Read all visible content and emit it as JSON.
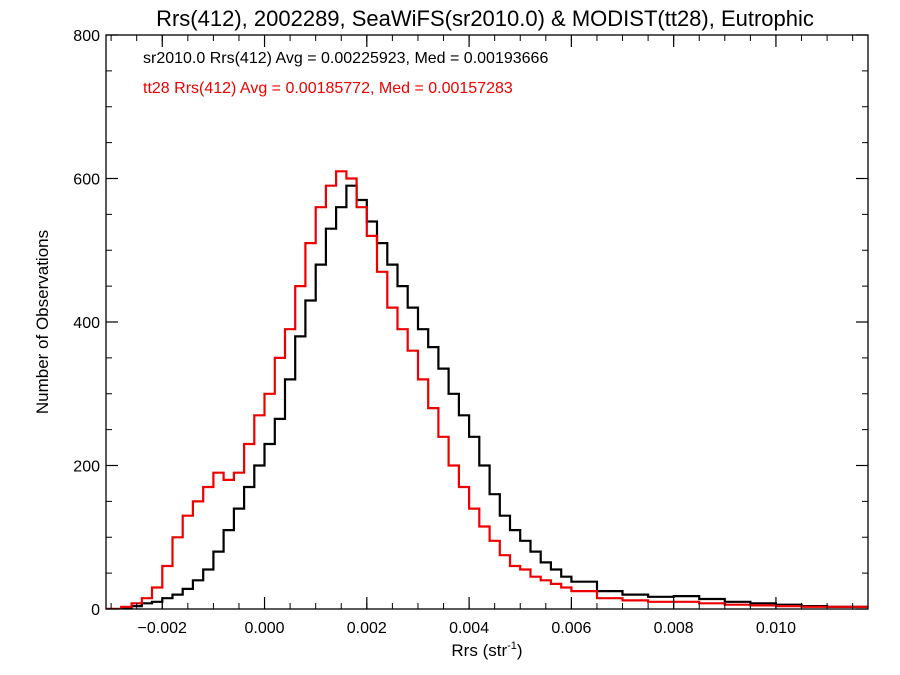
{
  "chart_data": {
    "type": "line",
    "step": true,
    "title": "Rrs(412), 2002289, SeaWiFS(sr2010.0) & MODIST(tt28), Eutrophic",
    "xlabel_main": "Rrs (str",
    "xlabel_sup": "-1",
    "xlabel_end": ")",
    "ylabel": "Number of Observations",
    "xlim": [
      -0.0031,
      0.0118
    ],
    "ylim": [
      0,
      800
    ],
    "xticks": [
      -0.002,
      0.0,
      0.002,
      0.004,
      0.006,
      0.008,
      0.01
    ],
    "xtick_labels": [
      "−0.002",
      "0.000",
      "0.002",
      "0.004",
      "0.006",
      "0.008",
      "0.010"
    ],
    "yticks": [
      0,
      200,
      400,
      600,
      800
    ],
    "ytick_labels": [
      "0",
      "200",
      "400",
      "600",
      "800"
    ],
    "grid": false,
    "legend_placement": "top-left",
    "annotations": [
      {
        "text": "sr2010.0 Rrs(412) Avg = 0.00225923, Med = 0.00193666",
        "color": "#000000"
      },
      {
        "text": "tt28 Rrs(412) Avg = 0.00185772, Med = 0.00157283",
        "color": "#ee0000"
      }
    ],
    "series": [
      {
        "color": "#000000",
        "x": [
          -0.0031,
          -0.0028,
          -0.0026,
          -0.0024,
          -0.0022,
          -0.002,
          -0.0018,
          -0.0016,
          -0.0014,
          -0.0012,
          -0.001,
          -0.0008,
          -0.0006,
          -0.0004,
          -0.0002,
          0.0,
          0.0002,
          0.0004,
          0.0006,
          0.0008,
          0.001,
          0.0012,
          0.0014,
          0.0016,
          0.0018,
          0.002,
          0.0022,
          0.0024,
          0.0026,
          0.0028,
          0.003,
          0.0032,
          0.0034,
          0.0036,
          0.0038,
          0.004,
          0.0042,
          0.0044,
          0.0046,
          0.0048,
          0.005,
          0.0052,
          0.0054,
          0.0056,
          0.0058,
          0.006,
          0.0065,
          0.007,
          0.0075,
          0.008,
          0.0085,
          0.009,
          0.0095,
          0.01,
          0.0105,
          0.011,
          0.0118
        ],
        "y": [
          0,
          2,
          4,
          8,
          10,
          15,
          20,
          28,
          40,
          55,
          80,
          110,
          140,
          170,
          200,
          230,
          265,
          320,
          380,
          430,
          480,
          530,
          560,
          590,
          570,
          540,
          510,
          480,
          450,
          420,
          390,
          365,
          335,
          300,
          270,
          240,
          200,
          160,
          130,
          110,
          95,
          80,
          65,
          55,
          45,
          38,
          25,
          20,
          17,
          18,
          14,
          10,
          8,
          6,
          4,
          3,
          2
        ]
      },
      {
        "color": "#ee0000",
        "x": [
          -0.0031,
          -0.0028,
          -0.0026,
          -0.0024,
          -0.0022,
          -0.002,
          -0.0018,
          -0.0016,
          -0.0014,
          -0.0012,
          -0.001,
          -0.0008,
          -0.0006,
          -0.0004,
          -0.0002,
          0.0,
          0.0002,
          0.0004,
          0.0006,
          0.0008,
          0.001,
          0.0012,
          0.0014,
          0.0016,
          0.0018,
          0.002,
          0.0022,
          0.0024,
          0.0026,
          0.0028,
          0.003,
          0.0032,
          0.0034,
          0.0036,
          0.0038,
          0.004,
          0.0042,
          0.0044,
          0.0046,
          0.0048,
          0.005,
          0.0052,
          0.0054,
          0.0056,
          0.0058,
          0.006,
          0.0065,
          0.007,
          0.0075,
          0.008,
          0.0085,
          0.009,
          0.0095,
          0.01,
          0.0105,
          0.011,
          0.0118
        ],
        "y": [
          0,
          3,
          8,
          15,
          30,
          60,
          100,
          130,
          150,
          170,
          190,
          180,
          190,
          230,
          270,
          300,
          350,
          390,
          450,
          510,
          560,
          590,
          610,
          600,
          560,
          520,
          470,
          420,
          390,
          360,
          320,
          280,
          240,
          200,
          170,
          140,
          115,
          95,
          75,
          60,
          55,
          45,
          40,
          35,
          30,
          25,
          15,
          12,
          10,
          10,
          8,
          6,
          5,
          4,
          3,
          3,
          2
        ]
      }
    ]
  }
}
